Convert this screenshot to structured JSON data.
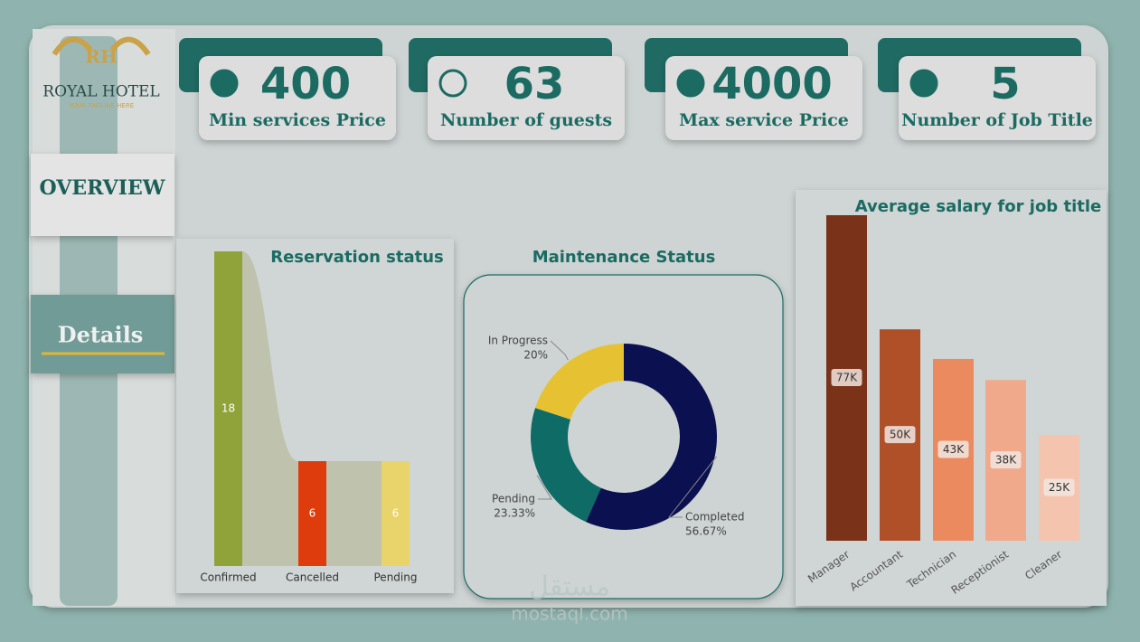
{
  "logo": {
    "monogram": "RH",
    "name": "ROYAL HOTEL",
    "tagline": "YOUR TAGLINE HERE"
  },
  "nav": [
    "OVERVIEW",
    "Details"
  ],
  "kpis": [
    {
      "value": 400,
      "label": "Min services Price"
    },
    {
      "value": 63,
      "label": "Number of guests"
    },
    {
      "value": 4000,
      "label": "Max service Price"
    },
    {
      "value": 5,
      "label": "Number of Job Title"
    }
  ],
  "watermark": [
    "مستقل",
    "mostaql.com"
  ],
  "chart_data": [
    {
      "type": "bar",
      "title": "Reservation status",
      "categories": [
        "Confirmed",
        "Cancelled",
        "Pending"
      ],
      "values": [
        18,
        6,
        6
      ],
      "colors": [
        "#8fa33a",
        "#de3c0c",
        "#e8d46a"
      ]
    },
    {
      "type": "donut",
      "title": "Maintenance Status",
      "categories": [
        "Completed",
        "Pending",
        "In Progress"
      ],
      "values": [
        56.67,
        23.33,
        20
      ],
      "value_labels": [
        "56.67%",
        "23.33%",
        "20%"
      ],
      "colors": [
        "#0b1150",
        "#0e6b66",
        "#e6c233"
      ]
    },
    {
      "type": "bar",
      "title": "Average salary for job title",
      "categories": [
        "Manager",
        "Accountant",
        "Technician",
        "Receptionist",
        "Cleaner"
      ],
      "values": [
        77000,
        50000,
        43000,
        38000,
        25000
      ],
      "value_labels": [
        "77K",
        "50K",
        "43K",
        "38K",
        "25K"
      ],
      "colors": [
        "#7a3219",
        "#b05028",
        "#ec8a5f",
        "#f0a98a",
        "#f5c4ae"
      ]
    }
  ]
}
